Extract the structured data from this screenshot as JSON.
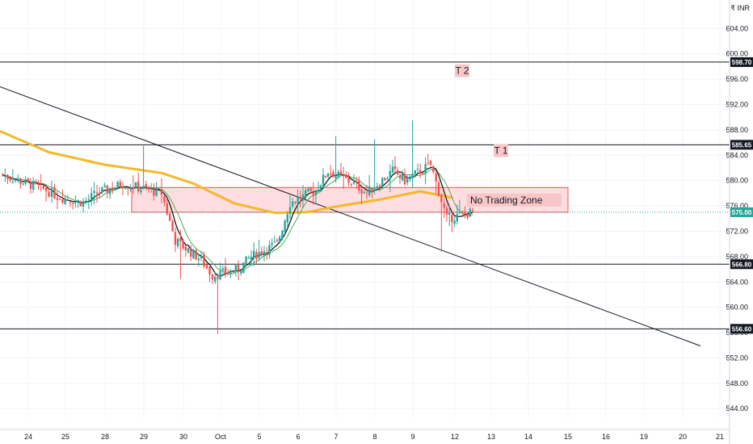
{
  "currency_label": "INR",
  "chart_data": {
    "type": "candlestick",
    "y_ticks": [
      "544.00",
      "548.00",
      "552.00",
      "556.00",
      "560.00",
      "564.00",
      "568.00",
      "572.00",
      "576.00",
      "580.00",
      "584.00",
      "588.00",
      "592.00",
      "596.00",
      "600.00",
      "604.00"
    ],
    "x_ticks": [
      "24",
      "25",
      "28",
      "29",
      "30",
      "Oct",
      "5",
      "6",
      "7",
      "8",
      "9",
      "12",
      "13",
      "14",
      "15",
      "16",
      "19",
      "20",
      "21"
    ],
    "ylim": [
      542.5,
      608.5
    ],
    "colors": {
      "up": "#26a69a",
      "down": "#ef5350",
      "sma_fast": "#131722",
      "sma_mid": "#4caf50",
      "sma_slow": "#f5b82a",
      "zone": "#ffdde0",
      "zone_border": "#ef5350",
      "level": "#131722",
      "trend": "#131722",
      "price_tag": "#26a69a",
      "level_tag": "#131722"
    },
    "horizontal_levels": [
      {
        "label": "598.70",
        "value": 598.7
      },
      {
        "label": "585.65",
        "value": 585.65
      },
      {
        "label": "566.80",
        "value": 566.8
      },
      {
        "label": "556.60",
        "value": 556.6
      }
    ],
    "last_price": {
      "label": "575.00",
      "value": 575.0
    },
    "annotations": [
      {
        "text": "T 2",
        "value": 597.2,
        "anchor_x": "12"
      },
      {
        "text": "T 1",
        "value": 584.6,
        "anchor_x": "13"
      },
      {
        "text": "No Trading Zone",
        "value": 576.8,
        "anchor_x": "14"
      }
    ],
    "no_trading_zone": {
      "low": 575.0,
      "high": 578.9,
      "from_x": "28",
      "to_x": "15"
    },
    "trendline": {
      "start": {
        "x": "start",
        "y": 594.8
      },
      "end": {
        "x": "20",
        "y": 553.9
      }
    },
    "price_path": [
      {
        "x": "24",
        "y": 581.0
      },
      {
        "x": "24",
        "y": 578.5
      },
      {
        "x": "25",
        "y": 577.5
      },
      {
        "x": "25",
        "y": 576.5
      },
      {
        "x": "28",
        "y": 578.0
      },
      {
        "x": "28",
        "y": 579.5
      },
      {
        "x": "29",
        "y": 579.0
      },
      {
        "x": "29",
        "y": 578.0
      },
      {
        "x": "30",
        "y": 570.5
      },
      {
        "x": "30",
        "y": 567.5
      },
      {
        "x": "Oct",
        "y": 565.0
      },
      {
        "x": "Oct",
        "y": 566.0
      },
      {
        "x": "5",
        "y": 568.0
      },
      {
        "x": "5",
        "y": 570.0
      },
      {
        "x": "6",
        "y": 576.5
      },
      {
        "x": "6",
        "y": 578.5
      },
      {
        "x": "7",
        "y": 581.5
      },
      {
        "x": "7",
        "y": 579.5
      },
      {
        "x": "8",
        "y": 578.0
      },
      {
        "x": "8",
        "y": 581.5
      },
      {
        "x": "9",
        "y": 580.0
      },
      {
        "x": "9",
        "y": 582.5
      },
      {
        "x": "12",
        "y": 574.0
      },
      {
        "x": "12",
        "y": 575.0
      }
    ]
  }
}
